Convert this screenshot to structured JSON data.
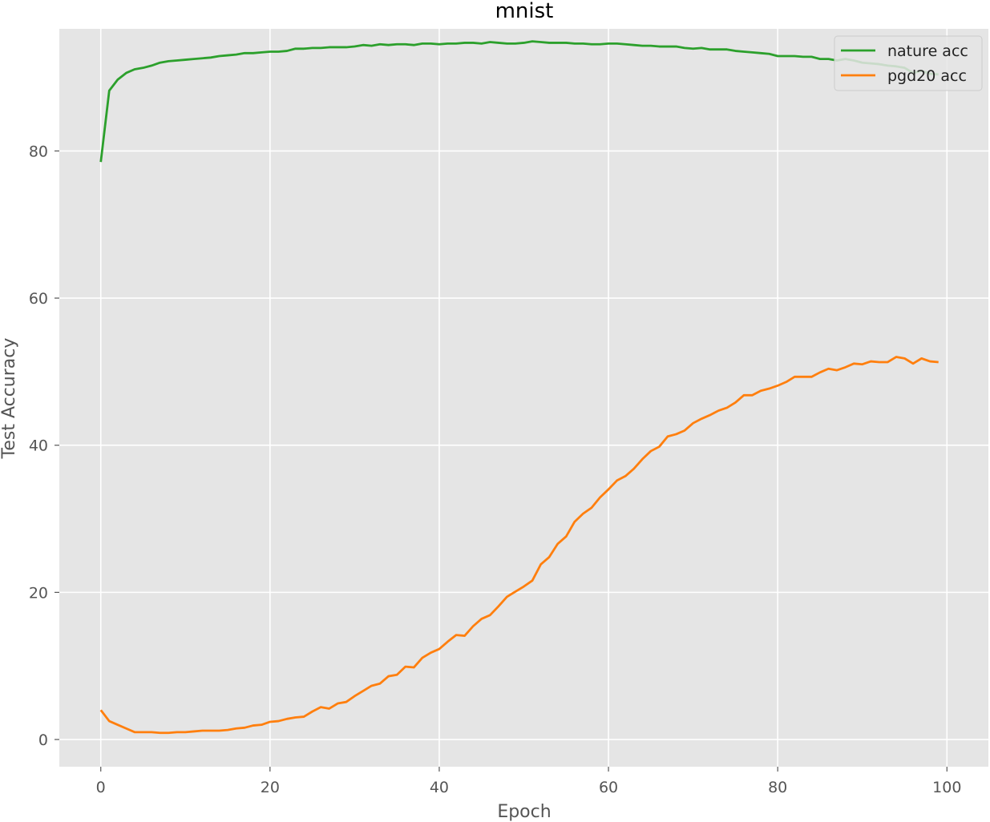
{
  "chart_data": {
    "type": "line",
    "title": "mnist",
    "xlabel": "Epoch",
    "ylabel": "Test Accuracy",
    "xlim": [
      -4.9,
      104.9
    ],
    "ylim": [
      -3.7,
      96.6
    ],
    "xticks": [
      0,
      20,
      40,
      60,
      80,
      100
    ],
    "yticks": [
      0,
      20,
      40,
      60,
      80
    ],
    "grid": true,
    "legend_location": "top-right",
    "series": [
      {
        "name": "nature acc",
        "color": "#2ca02c",
        "x": [
          0,
          1,
          2,
          3,
          4,
          5,
          6,
          7,
          8,
          9,
          10,
          11,
          12,
          13,
          14,
          15,
          16,
          17,
          18,
          19,
          20,
          21,
          22,
          23,
          24,
          25,
          26,
          27,
          28,
          29,
          30,
          31,
          32,
          33,
          34,
          35,
          36,
          37,
          38,
          39,
          40,
          41,
          42,
          43,
          44,
          45,
          46,
          47,
          48,
          49,
          50,
          51,
          52,
          53,
          54,
          55,
          56,
          57,
          58,
          59,
          60,
          61,
          62,
          63,
          64,
          65,
          66,
          67,
          68,
          69,
          70,
          71,
          72,
          73,
          74,
          75,
          76,
          77,
          78,
          79,
          80,
          81,
          82,
          83,
          84,
          85,
          86,
          87,
          88,
          89,
          90,
          91,
          92,
          93,
          94,
          95,
          96,
          97,
          98,
          99
        ],
        "values": [
          78.5,
          88.2,
          89.7,
          90.6,
          91.1,
          91.3,
          91.6,
          92.0,
          92.2,
          92.3,
          92.4,
          92.5,
          92.6,
          92.7,
          92.9,
          93.0,
          93.1,
          93.3,
          93.3,
          93.4,
          93.5,
          93.5,
          93.6,
          93.9,
          93.9,
          94.0,
          94.0,
          94.1,
          94.1,
          94.1,
          94.2,
          94.4,
          94.3,
          94.5,
          94.4,
          94.5,
          94.5,
          94.4,
          94.6,
          94.6,
          94.5,
          94.6,
          94.6,
          94.7,
          94.7,
          94.6,
          94.8,
          94.7,
          94.6,
          94.6,
          94.7,
          94.9,
          94.8,
          94.7,
          94.7,
          94.7,
          94.6,
          94.6,
          94.5,
          94.5,
          94.6,
          94.6,
          94.5,
          94.4,
          94.3,
          94.3,
          94.2,
          94.2,
          94.2,
          94.0,
          93.9,
          94.0,
          93.8,
          93.8,
          93.8,
          93.6,
          93.5,
          93.4,
          93.3,
          93.2,
          92.9,
          92.9,
          92.9,
          92.8,
          92.8,
          92.5,
          92.5,
          92.3,
          92.5,
          92.3,
          92.0,
          91.9,
          91.8,
          91.6,
          91.5,
          91.3,
          90.6,
          90.9,
          90.5,
          90.4
        ]
      },
      {
        "name": "pgd20 acc",
        "color": "#ff7f0e",
        "x": [
          0,
          1,
          2,
          3,
          4,
          5,
          6,
          7,
          8,
          9,
          10,
          11,
          12,
          13,
          14,
          15,
          16,
          17,
          18,
          19,
          20,
          21,
          22,
          23,
          24,
          25,
          26,
          27,
          28,
          29,
          30,
          31,
          32,
          33,
          34,
          35,
          36,
          37,
          38,
          39,
          40,
          41,
          42,
          43,
          44,
          45,
          46,
          47,
          48,
          49,
          50,
          51,
          52,
          53,
          54,
          55,
          56,
          57,
          58,
          59,
          60,
          61,
          62,
          63,
          64,
          65,
          66,
          67,
          68,
          69,
          70,
          71,
          72,
          73,
          74,
          75,
          76,
          77,
          78,
          79,
          80,
          81,
          82,
          83,
          84,
          85,
          86,
          87,
          88,
          89,
          90,
          91,
          92,
          93,
          94,
          95,
          96,
          97,
          98,
          99
        ],
        "values": [
          4.0,
          2.5,
          2.0,
          1.5,
          1.0,
          1.0,
          1.0,
          0.9,
          0.9,
          1.0,
          1.0,
          1.1,
          1.2,
          1.2,
          1.2,
          1.3,
          1.5,
          1.6,
          1.9,
          2.0,
          2.4,
          2.5,
          2.8,
          3.0,
          3.1,
          3.8,
          4.4,
          4.2,
          4.9,
          5.1,
          5.9,
          6.6,
          7.3,
          7.6,
          8.6,
          8.8,
          9.9,
          9.8,
          11.1,
          11.8,
          12.3,
          13.3,
          14.2,
          14.1,
          15.4,
          16.4,
          16.9,
          18.1,
          19.4,
          20.1,
          20.8,
          21.6,
          23.8,
          24.8,
          26.6,
          27.6,
          29.6,
          30.7,
          31.5,
          32.9,
          34.0,
          35.2,
          35.8,
          36.8,
          38.1,
          39.2,
          39.8,
          41.2,
          41.5,
          42.0,
          43.0,
          43.6,
          44.1,
          44.7,
          45.1,
          45.8,
          46.8,
          46.8,
          47.4,
          47.7,
          48.1,
          48.6,
          49.3,
          49.3,
          49.3,
          49.9,
          50.4,
          50.2,
          50.6,
          51.1,
          51.0,
          51.4,
          51.3,
          51.3,
          52.0,
          51.8,
          51.1,
          51.8,
          51.4,
          51.3
        ]
      }
    ]
  }
}
